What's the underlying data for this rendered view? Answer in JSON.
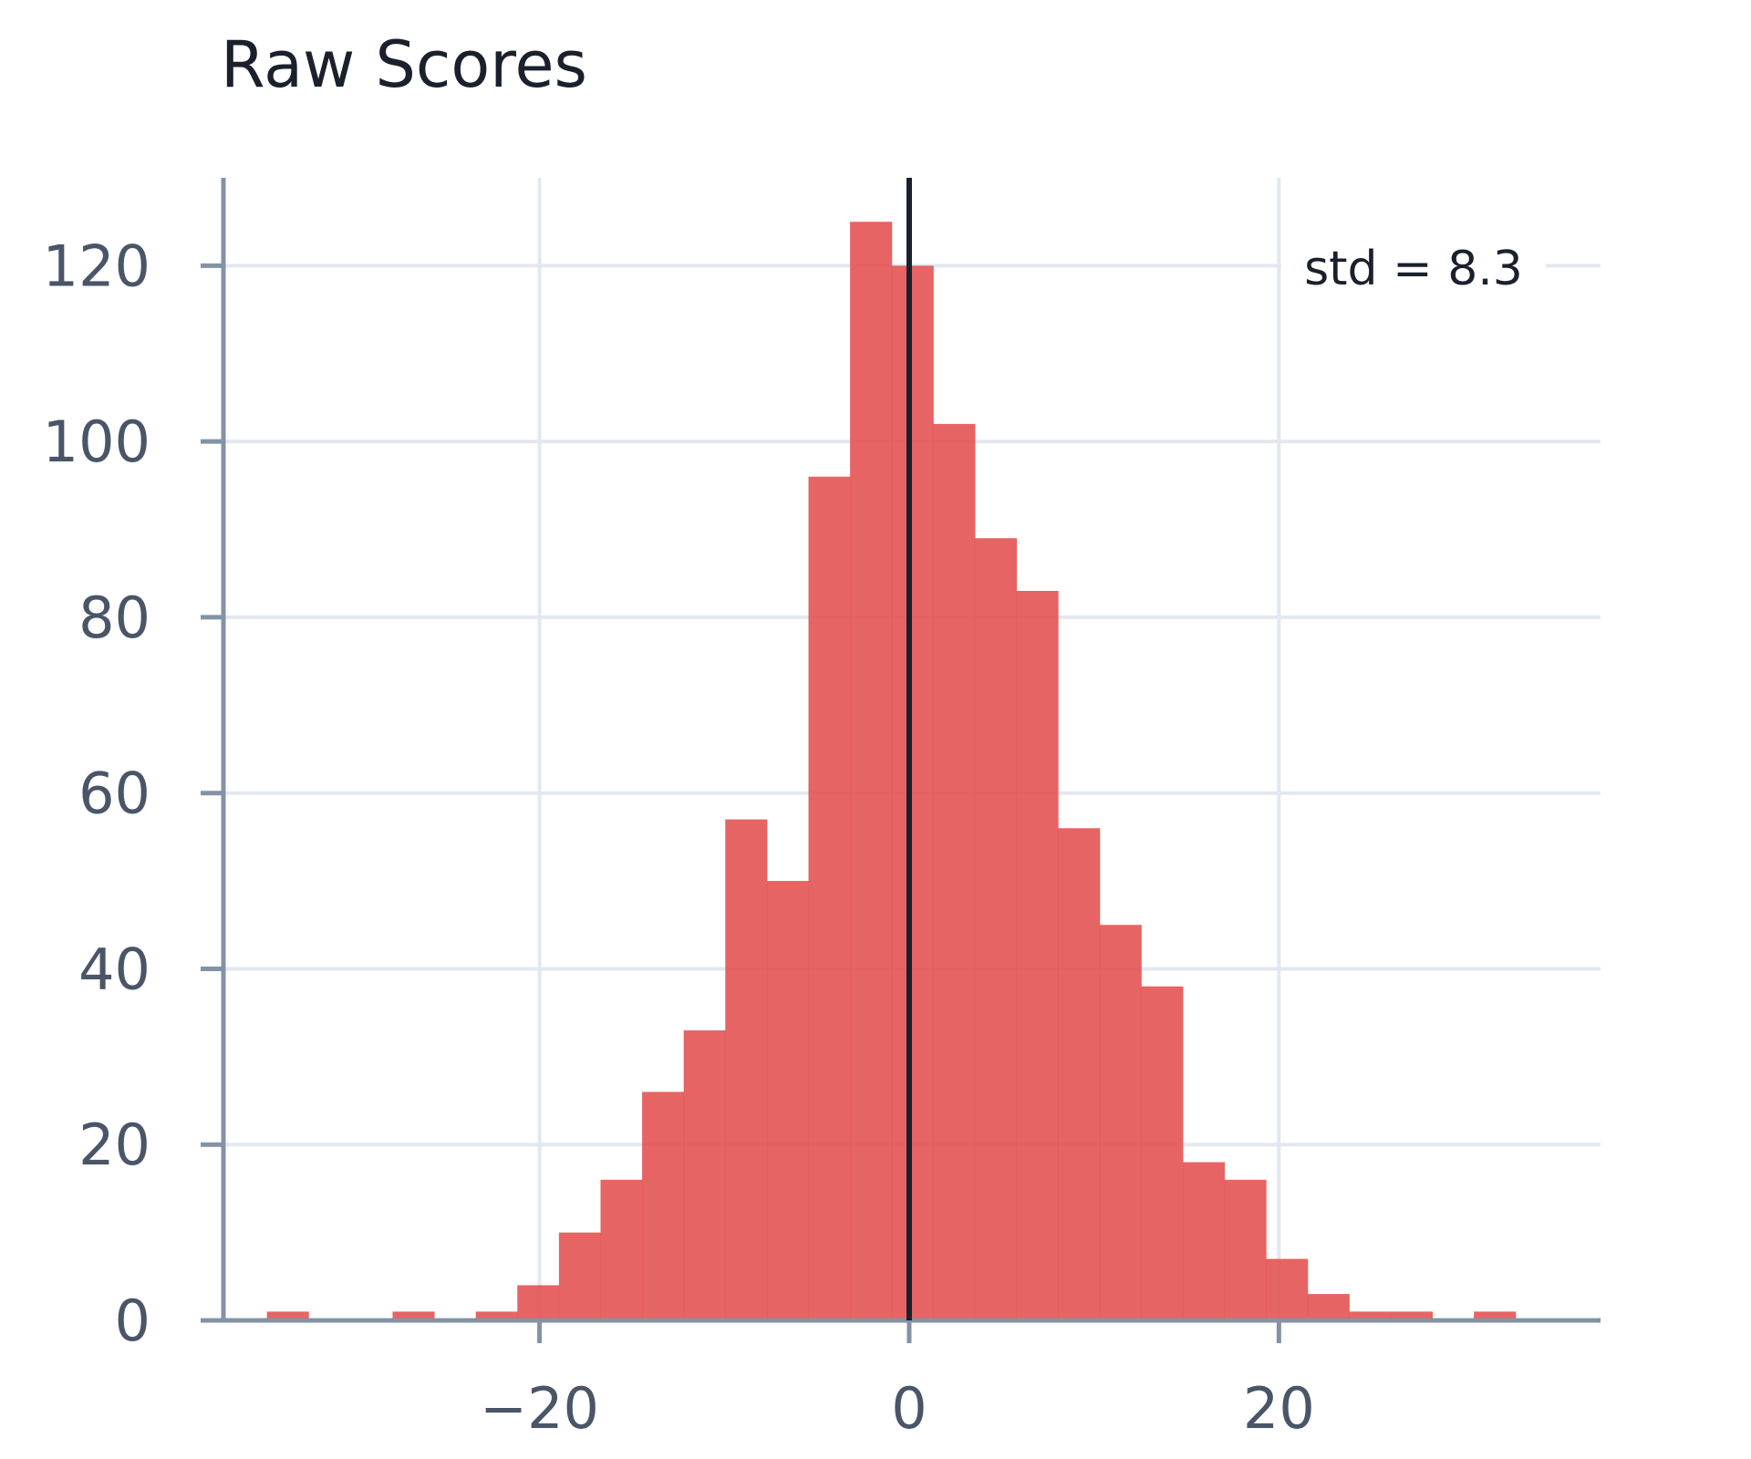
{
  "chart_data": {
    "type": "histogram",
    "title": "Raw Scores",
    "xlabel": "",
    "ylabel": "",
    "xlim": [
      -37.1,
      37.4
    ],
    "ylim": [
      0,
      130
    ],
    "x_ticks": [
      -20,
      0,
      20
    ],
    "y_ticks": [
      0,
      20,
      40,
      60,
      80,
      100,
      120
    ],
    "grid": true,
    "bin_width": 2.25,
    "bins": [
      {
        "x0": -34.75,
        "x1": -32.5,
        "count": 1
      },
      {
        "x0": -27.95,
        "x1": -25.7,
        "count": 1
      },
      {
        "x0": -23.45,
        "x1": -21.2,
        "count": 1
      },
      {
        "x0": -21.2,
        "x1": -18.95,
        "count": 4
      },
      {
        "x0": -18.95,
        "x1": -16.7,
        "count": 10
      },
      {
        "x0": -16.7,
        "x1": -14.45,
        "count": 16
      },
      {
        "x0": -14.45,
        "x1": -12.2,
        "count": 26
      },
      {
        "x0": -12.2,
        "x1": -9.95,
        "count": 33
      },
      {
        "x0": -9.95,
        "x1": -7.7,
        "count": 57
      },
      {
        "x0": -7.7,
        "x1": -5.45,
        "count": 50
      },
      {
        "x0": -5.45,
        "x1": -3.2,
        "count": 96
      },
      {
        "x0": -3.2,
        "x1": -0.95,
        "count": 125
      },
      {
        "x0": -0.95,
        "x1": 1.3,
        "count": 120
      },
      {
        "x0": 1.3,
        "x1": 3.55,
        "count": 102
      },
      {
        "x0": 3.55,
        "x1": 5.8,
        "count": 89
      },
      {
        "x0": 5.8,
        "x1": 8.05,
        "count": 83
      },
      {
        "x0": 8.05,
        "x1": 10.3,
        "count": 56
      },
      {
        "x0": 10.3,
        "x1": 12.55,
        "count": 45
      },
      {
        "x0": 12.55,
        "x1": 14.8,
        "count": 38
      },
      {
        "x0": 14.8,
        "x1": 17.05,
        "count": 18
      },
      {
        "x0": 17.05,
        "x1": 19.3,
        "count": 16
      },
      {
        "x0": 19.3,
        "x1": 21.55,
        "count": 7
      },
      {
        "x0": 21.55,
        "x1": 23.8,
        "count": 3
      },
      {
        "x0": 23.8,
        "x1": 26.05,
        "count": 1
      },
      {
        "x0": 26.05,
        "x1": 28.3,
        "count": 1
      },
      {
        "x0": 30.55,
        "x1": 32.8,
        "count": 1
      }
    ],
    "bar_color": "#e45756",
    "vline": {
      "x": 0,
      "color": "#1a202c"
    },
    "annotation": "std = 8.3"
  }
}
